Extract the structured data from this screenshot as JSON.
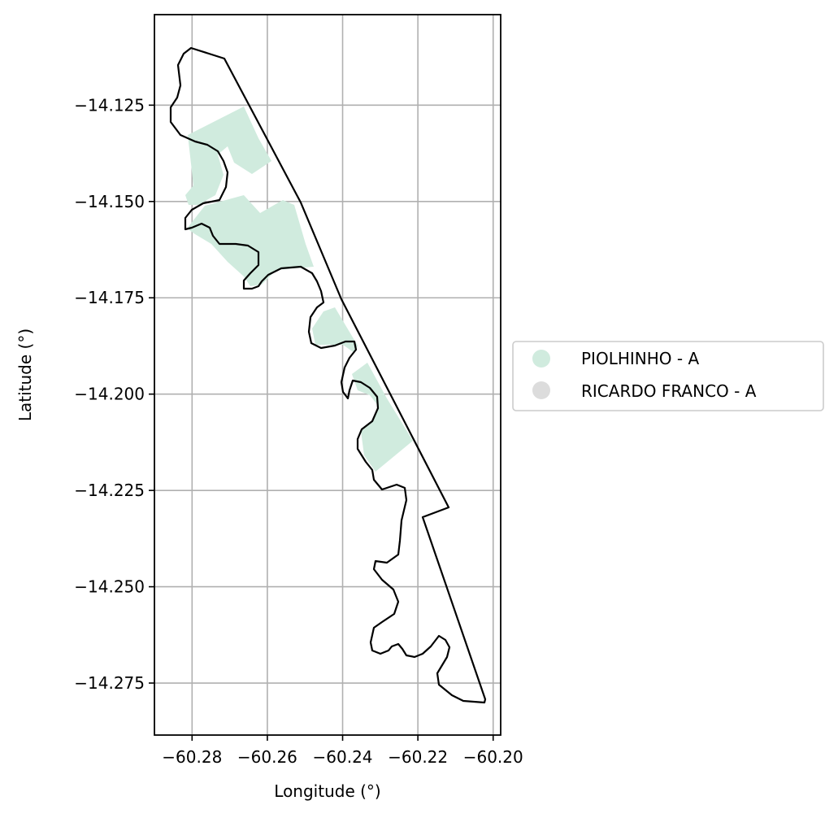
{
  "chart_data": {
    "type": "map",
    "xlabel": "Longitude (°)",
    "ylabel": "Latitude (°)",
    "xlim": [
      -60.29,
      -60.198
    ],
    "ylim": [
      -14.2885,
      -14.1015
    ],
    "x_ticks": [
      -60.28,
      -60.26,
      -60.24,
      -60.22,
      -60.2
    ],
    "x_tick_labels": [
      "−60.28",
      "−60.26",
      "−60.24",
      "−60.22",
      "−60.20"
    ],
    "y_ticks": [
      -14.125,
      -14.15,
      -14.175,
      -14.2,
      -14.225,
      -14.25,
      -14.275
    ],
    "y_tick_labels": [
      "−14.125",
      "−14.150",
      "−14.175",
      "−14.200",
      "−14.225",
      "−14.250",
      "−14.275"
    ],
    "grid": true,
    "legend_position": "right-center",
    "legend": [
      {
        "label": "PIOLHINHO - A",
        "color": "#d0ebde"
      },
      {
        "label": "RICARDO FRANCO - A",
        "color": "#dcdcdc"
      }
    ],
    "colors": {
      "boundary": "#000000",
      "grid": "#b0b0b0",
      "fill": "#d0ebde"
    }
  }
}
